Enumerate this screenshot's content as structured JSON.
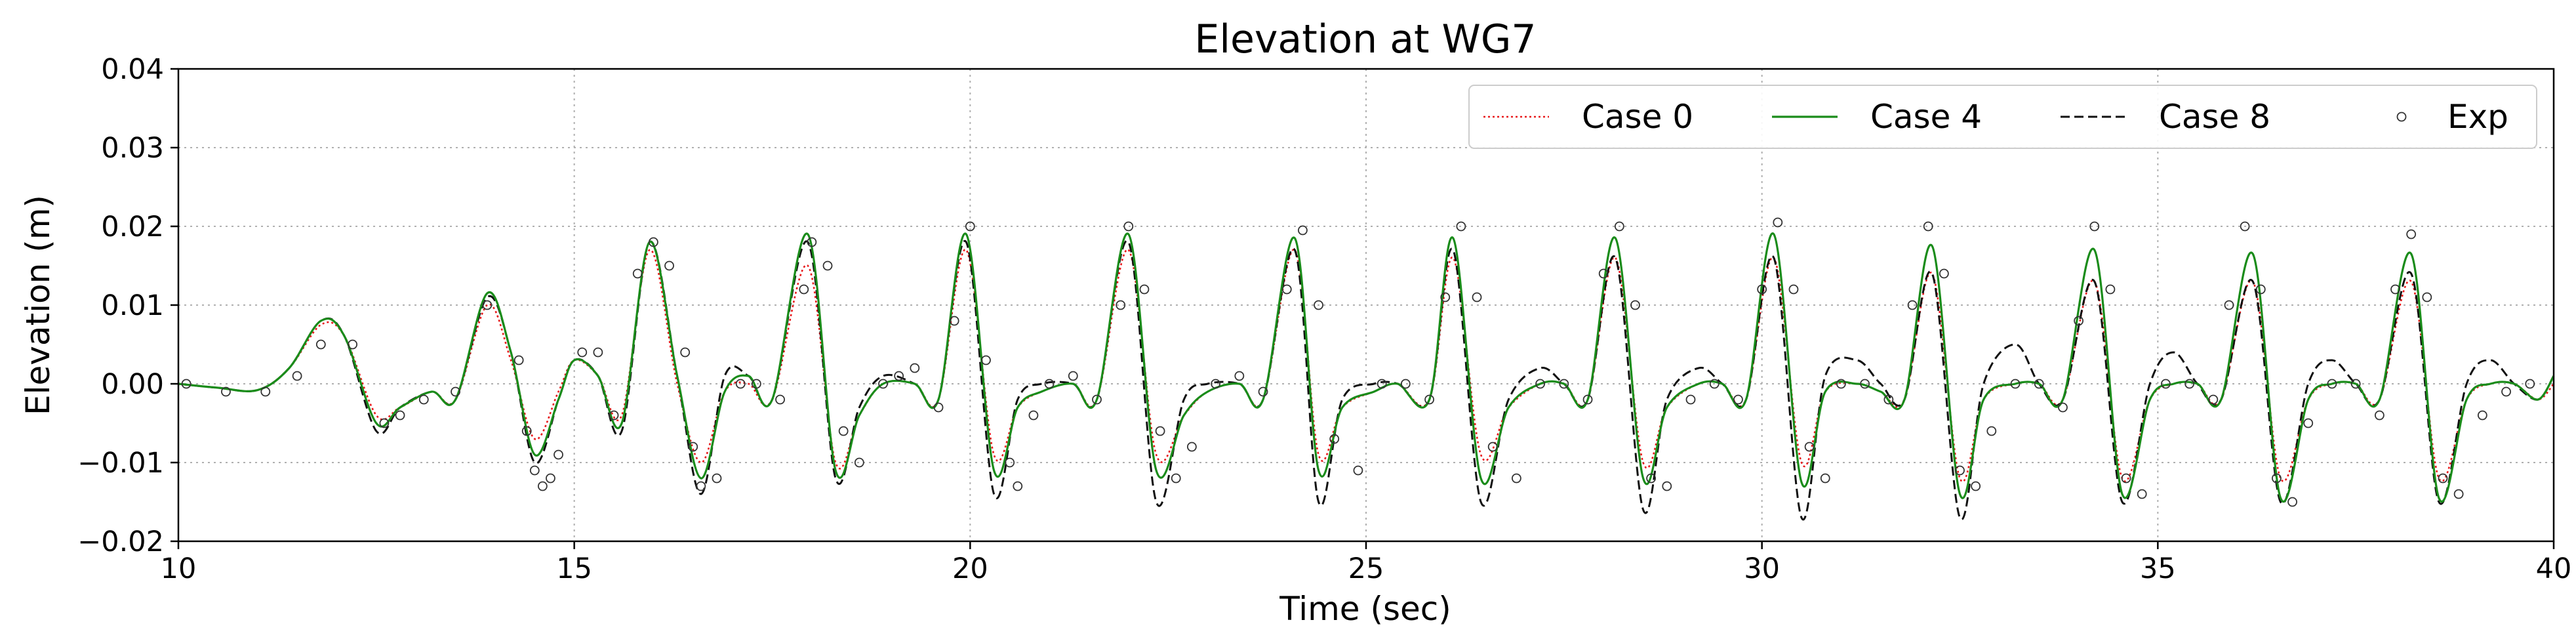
{
  "chart_data": {
    "type": "line",
    "title": "Elevation at WG7",
    "xlabel": "Time (sec)",
    "ylabel": "Elevation (m)",
    "xlim": [
      10,
      40
    ],
    "ylim": [
      -0.02,
      0.04
    ],
    "xticks": [
      10,
      15,
      20,
      25,
      30,
      35,
      40
    ],
    "xtick_labels": [
      "10",
      "15",
      "20",
      "25",
      "30",
      "35",
      "40"
    ],
    "yticks": [
      -0.02,
      -0.01,
      0.0,
      0.01,
      0.02,
      0.03,
      0.04
    ],
    "ytick_labels": [
      "−0.02",
      "−0.01",
      "0.00",
      "0.01",
      "0.02",
      "0.03",
      "0.04"
    ],
    "grid": true,
    "legend_position": "top-right",
    "series": [
      {
        "name": "Case 0",
        "style": "dotted",
        "color": "#e8191b",
        "x": [
          10,
          10.5,
          11,
          11.4,
          11.8,
          12.1,
          12.5,
          12.8,
          13.2,
          13.5,
          13.9,
          14.2,
          14.5,
          14.8,
          15.0,
          15.3,
          15.6,
          15.95,
          16.3,
          16.6,
          16.9,
          17.2,
          17.5,
          17.95,
          18.3,
          18.6,
          18.9,
          19.3,
          19.6,
          19.95,
          20.3,
          20.6,
          20.9,
          21.3,
          21.6,
          22.0,
          22.35,
          22.7,
          23.0,
          23.4,
          23.7,
          24.1,
          24.4,
          24.7,
          25.1,
          25.4,
          25.8,
          26.1,
          26.45,
          26.8,
          27.2,
          27.5,
          27.8,
          28.15,
          28.5,
          28.8,
          29.2,
          29.5,
          29.8,
          30.15,
          30.5,
          30.8,
          31.2,
          31.5,
          31.8,
          32.15,
          32.5,
          32.8,
          33.2,
          33.5,
          33.8,
          34.2,
          34.55,
          34.9,
          35.2,
          35.5,
          35.8,
          36.2,
          36.55,
          36.9,
          37.2,
          37.5,
          37.8,
          38.2,
          38.55,
          38.9,
          39.2,
          39.5,
          39.8,
          40
        ],
        "values": [
          0.0,
          -0.0005,
          -0.0008,
          0.002,
          0.0075,
          0.006,
          -0.004,
          -0.003,
          -0.001,
          -0.002,
          0.01,
          0.003,
          -0.007,
          -0.001,
          0.003,
          0.001,
          -0.004,
          0.017,
          0.0,
          -0.01,
          -0.001,
          0.0,
          -0.002,
          0.015,
          -0.01,
          -0.004,
          0.0,
          0.0,
          -0.002,
          0.017,
          -0.009,
          -0.003,
          -0.001,
          0.0,
          -0.002,
          0.017,
          -0.009,
          -0.004,
          -0.001,
          0.0,
          -0.002,
          0.017,
          -0.009,
          -0.003,
          -0.001,
          0.0,
          -0.002,
          0.016,
          -0.009,
          -0.003,
          0.0,
          0.0,
          -0.002,
          0.016,
          -0.01,
          -0.003,
          0.0,
          0.0,
          -0.002,
          0.016,
          -0.01,
          -0.001,
          0.0,
          -0.001,
          -0.002,
          0.014,
          -0.012,
          -0.002,
          0.0,
          0.0,
          -0.002,
          0.013,
          -0.012,
          -0.002,
          0.0,
          0.0,
          -0.002,
          0.013,
          -0.012,
          -0.002,
          0.0,
          0.0,
          -0.002,
          0.013,
          -0.012,
          -0.002,
          0.0,
          0.0,
          -0.002,
          0.0
        ]
      },
      {
        "name": "Case 4",
        "style": "solid",
        "color": "#1a8c1a",
        "x": [
          10,
          10.5,
          11,
          11.4,
          11.8,
          12.1,
          12.5,
          12.8,
          13.2,
          13.5,
          13.9,
          14.2,
          14.5,
          14.8,
          15.0,
          15.3,
          15.6,
          15.95,
          16.3,
          16.6,
          16.9,
          17.2,
          17.5,
          17.95,
          18.3,
          18.6,
          18.9,
          19.3,
          19.6,
          19.95,
          20.3,
          20.6,
          20.9,
          21.3,
          21.6,
          22.0,
          22.35,
          22.7,
          23.0,
          23.4,
          23.7,
          24.1,
          24.4,
          24.7,
          25.1,
          25.4,
          25.8,
          26.1,
          26.45,
          26.8,
          27.2,
          27.5,
          27.8,
          28.15,
          28.5,
          28.8,
          29.2,
          29.5,
          29.8,
          30.15,
          30.5,
          30.8,
          31.2,
          31.5,
          31.8,
          32.15,
          32.5,
          32.8,
          33.2,
          33.5,
          33.8,
          34.2,
          34.55,
          34.9,
          35.2,
          35.5,
          35.8,
          36.2,
          36.55,
          36.9,
          37.2,
          37.5,
          37.8,
          38.2,
          38.55,
          38.9,
          39.2,
          39.5,
          39.8,
          40
        ],
        "values": [
          0.0,
          -0.0005,
          -0.0008,
          0.002,
          0.008,
          0.006,
          -0.005,
          -0.003,
          -0.001,
          -0.002,
          0.0115,
          0.004,
          -0.009,
          -0.002,
          0.003,
          0.001,
          -0.005,
          0.018,
          0.001,
          -0.012,
          -0.001,
          0.001,
          -0.002,
          0.019,
          -0.011,
          -0.004,
          0.0,
          0.0,
          -0.002,
          0.019,
          -0.011,
          -0.003,
          -0.001,
          0.0,
          -0.002,
          0.019,
          -0.011,
          -0.004,
          -0.001,
          0.0,
          -0.002,
          0.0185,
          -0.011,
          -0.003,
          -0.001,
          0.0,
          -0.002,
          0.0185,
          -0.012,
          -0.003,
          0.0,
          0.0,
          -0.002,
          0.0185,
          -0.012,
          -0.003,
          0.0,
          0.0,
          -0.002,
          0.019,
          -0.0125,
          -0.001,
          0.0,
          -0.001,
          -0.002,
          0.0175,
          -0.014,
          -0.002,
          0.0,
          0.0,
          -0.002,
          0.017,
          -0.014,
          -0.002,
          0.0,
          0.0,
          -0.002,
          0.0165,
          -0.0145,
          -0.002,
          0.0,
          0.0,
          -0.002,
          0.0165,
          -0.0145,
          -0.002,
          0.0,
          0.0,
          -0.002,
          0.001
        ]
      },
      {
        "name": "Case 8",
        "style": "dashed",
        "color": "#111111",
        "x": [
          10,
          10.5,
          11,
          11.4,
          11.8,
          12.1,
          12.5,
          12.8,
          13.2,
          13.5,
          13.9,
          14.2,
          14.5,
          14.8,
          15.0,
          15.3,
          15.6,
          15.95,
          16.3,
          16.6,
          16.9,
          17.2,
          17.5,
          17.95,
          18.3,
          18.6,
          18.9,
          19.3,
          19.6,
          19.95,
          20.3,
          20.6,
          20.9,
          21.3,
          21.6,
          22.0,
          22.35,
          22.7,
          23.0,
          23.4,
          23.7,
          24.1,
          24.4,
          24.7,
          25.1,
          25.4,
          25.8,
          26.1,
          26.45,
          26.8,
          27.2,
          27.5,
          27.8,
          28.15,
          28.5,
          28.8,
          29.2,
          29.5,
          29.8,
          30.15,
          30.5,
          30.8,
          31.2,
          31.5,
          31.8,
          32.15,
          32.5,
          32.8,
          33.2,
          33.5,
          33.8,
          34.2,
          34.55,
          34.9,
          35.2,
          35.5,
          35.8,
          36.2,
          36.55,
          36.9,
          37.2,
          37.5,
          37.8,
          38.2,
          38.55,
          38.9,
          39.2,
          39.5,
          39.8,
          40
        ],
        "values": [
          0.0,
          -0.0005,
          -0.0008,
          0.002,
          0.008,
          0.006,
          -0.006,
          -0.003,
          -0.001,
          -0.002,
          0.011,
          0.004,
          -0.01,
          -0.002,
          0.003,
          0.001,
          -0.006,
          0.018,
          0.001,
          -0.014,
          0.001,
          0.001,
          -0.002,
          0.018,
          -0.012,
          -0.003,
          0.001,
          0.0,
          -0.002,
          0.018,
          -0.014,
          -0.002,
          0.0,
          0.0,
          -0.002,
          0.018,
          -0.015,
          -0.002,
          0.0,
          0.0,
          -0.002,
          0.017,
          -0.015,
          -0.002,
          0.0,
          0.0,
          -0.002,
          0.017,
          -0.015,
          -0.002,
          0.002,
          0.0,
          -0.002,
          0.016,
          -0.016,
          -0.002,
          0.002,
          0.0,
          -0.002,
          0.016,
          -0.017,
          0.001,
          0.003,
          0.0,
          -0.002,
          0.014,
          -0.017,
          0.0,
          0.005,
          0.0,
          -0.002,
          0.013,
          -0.015,
          0.0,
          0.004,
          0.0,
          -0.002,
          0.013,
          -0.015,
          0.0,
          0.003,
          0.0,
          -0.002,
          0.014,
          -0.015,
          0.0,
          0.003,
          0.0,
          -0.002,
          0.001
        ]
      },
      {
        "name": "Exp",
        "style": "markers",
        "color": "#333333",
        "x": [
          10.1,
          10.6,
          11.1,
          11.5,
          11.8,
          12.2,
          12.6,
          12.8,
          13.1,
          13.5,
          13.9,
          14.3,
          14.4,
          14.5,
          14.6,
          14.7,
          14.8,
          15.1,
          15.3,
          15.5,
          15.8,
          16.0,
          16.2,
          16.4,
          16.5,
          16.6,
          16.8,
          17.1,
          17.3,
          17.6,
          17.9,
          18.0,
          18.2,
          18.4,
          18.6,
          18.9,
          19.1,
          19.3,
          19.6,
          19.8,
          20.0,
          20.2,
          20.5,
          20.6,
          20.8,
          21.0,
          21.3,
          21.6,
          21.9,
          22.0,
          22.2,
          22.4,
          22.6,
          22.8,
          23.1,
          23.4,
          23.7,
          24.0,
          24.2,
          24.4,
          24.6,
          24.9,
          25.2,
          25.5,
          25.8,
          26.0,
          26.2,
          26.4,
          26.6,
          26.9,
          27.2,
          27.5,
          27.8,
          28.0,
          28.2,
          28.4,
          28.6,
          28.8,
          29.1,
          29.4,
          29.7,
          30.0,
          30.2,
          30.4,
          30.6,
          30.8,
          31.0,
          31.3,
          31.6,
          31.9,
          32.1,
          32.3,
          32.5,
          32.7,
          32.9,
          33.2,
          33.5,
          33.8,
          34.0,
          34.2,
          34.4,
          34.6,
          34.8,
          35.1,
          35.4,
          35.7,
          35.9,
          36.1,
          36.3,
          36.5,
          36.7,
          36.9,
          37.2,
          37.5,
          37.8,
          38.0,
          38.2,
          38.4,
          38.6,
          38.8,
          39.1,
          39.4,
          39.7
        ],
        "values": [
          0.0,
          -0.001,
          -0.001,
          0.001,
          0.005,
          0.005,
          -0.005,
          -0.004,
          -0.002,
          -0.001,
          0.01,
          0.003,
          -0.006,
          -0.011,
          -0.013,
          -0.012,
          -0.009,
          0.004,
          0.004,
          -0.004,
          0.014,
          0.018,
          0.015,
          0.004,
          -0.008,
          -0.013,
          -0.012,
          0.0,
          0.0,
          -0.002,
          0.012,
          0.018,
          0.015,
          -0.006,
          -0.01,
          0.0,
          0.001,
          0.002,
          -0.003,
          0.008,
          0.02,
          0.003,
          -0.01,
          -0.013,
          -0.004,
          0.0,
          0.001,
          -0.002,
          0.01,
          0.02,
          0.012,
          -0.006,
          -0.012,
          -0.008,
          0.0,
          0.001,
          -0.001,
          0.012,
          0.0195,
          0.01,
          -0.007,
          -0.011,
          0.0,
          0.0,
          -0.002,
          0.011,
          0.02,
          0.011,
          -0.008,
          -0.012,
          0.0,
          0.0,
          -0.002,
          0.014,
          0.02,
          0.01,
          -0.012,
          -0.013,
          -0.002,
          0.0,
          -0.002,
          0.012,
          0.0205,
          0.012,
          -0.008,
          -0.012,
          0.0,
          0.0,
          -0.002,
          0.01,
          0.02,
          0.014,
          -0.011,
          -0.013,
          -0.006,
          0.0,
          0.0,
          -0.003,
          0.008,
          0.02,
          0.012,
          -0.012,
          -0.014,
          0.0,
          0.0,
          -0.002,
          0.01,
          0.02,
          0.012,
          -0.012,
          -0.015,
          -0.005,
          0.0,
          0.0,
          -0.004,
          0.012,
          0.019,
          0.011,
          -0.012,
          -0.014,
          -0.004,
          -0.001,
          0.0
        ]
      }
    ]
  }
}
